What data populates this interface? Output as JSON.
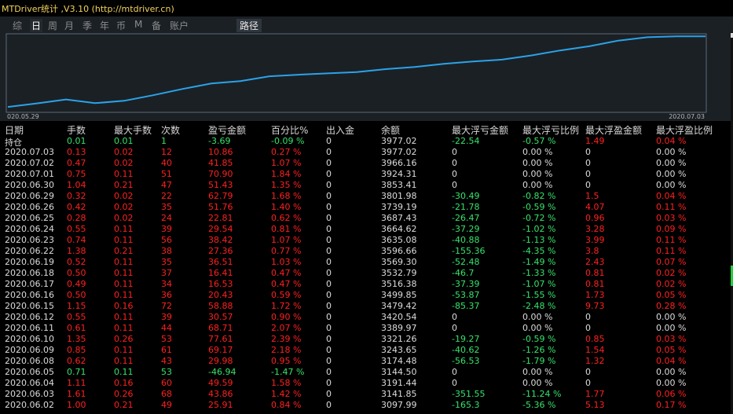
{
  "window": {
    "title": "MTDriver统计 ,V3.10 (http://mtdriver.cn)"
  },
  "tabs": [
    {
      "label": "综",
      "active": false,
      "icon": "tab-summary-icon"
    },
    {
      "label": "日",
      "active": true,
      "icon": "tab-day-icon"
    },
    {
      "label": "周",
      "active": false,
      "icon": "tab-week-icon"
    },
    {
      "label": "月",
      "active": false,
      "icon": "tab-month-icon"
    },
    {
      "label": "季",
      "active": false,
      "icon": "tab-quarter-icon"
    },
    {
      "label": "年",
      "active": false,
      "icon": "tab-year-icon"
    },
    {
      "label": "币",
      "active": false,
      "icon": "tab-currency-icon"
    },
    {
      "label": "M",
      "active": false,
      "icon": "tab-m-icon"
    },
    {
      "label": "备",
      "active": false,
      "icon": "tab-backup-icon"
    },
    {
      "label": "账户",
      "active": false,
      "icon": "tab-account-icon"
    }
  ],
  "path_tab": "路径",
  "chart_data": {
    "type": "line",
    "x_start": "020.05.29",
    "x_end": "2020.07.03",
    "series": [
      {
        "values": [
          3097.99,
          3141.85,
          3191.44,
          3144.5,
          3174.48,
          3243.65,
          3321.26,
          3389.97,
          3420.54,
          3479.42,
          3499.85,
          3516.38,
          3532.79,
          3569.3,
          3596.66,
          3635.08,
          3664.62,
          3687.43,
          3739.19,
          3801.98,
          3853.41,
          3924.31,
          3966.16,
          3977.02,
          3977.02
        ]
      }
    ],
    "line_color": "#2aa3e8"
  },
  "table": {
    "headers": [
      "日期",
      "手数",
      "最大手数",
      "次数",
      "盈亏金额",
      "百分比%",
      "出入金",
      "余额",
      "最大浮亏金额",
      "最大浮亏比例",
      "最大浮盈金额",
      "最大浮盈比例"
    ],
    "rows": [
      {
        "date": "持仓",
        "lots": "0.01",
        "max_lots": "0.01",
        "count": "1",
        "pnl": "-3.69",
        "pct": "-0.09 %",
        "io": "0",
        "bal": "3977.02",
        "mfl": "-22.54",
        "mflp": "-0.57 %",
        "mfp": "1.49",
        "mfpp": "0.04 %",
        "color": "green"
      },
      {
        "date": "2020.07.03",
        "lots": "0.13",
        "max_lots": "0.02",
        "count": "12",
        "pnl": "10.86",
        "pct": "0.27 %",
        "io": "0",
        "bal": "3977.02",
        "mfl": "0",
        "mflp": "0.00 %",
        "mfp": "0",
        "mfpp": "0.00 %",
        "color": "red"
      },
      {
        "date": "2020.07.02",
        "lots": "0.47",
        "max_lots": "0.02",
        "count": "40",
        "pnl": "41.85",
        "pct": "1.07 %",
        "io": "0",
        "bal": "3966.16",
        "mfl": "0",
        "mflp": "0.00 %",
        "mfp": "0",
        "mfpp": "0.00 %",
        "color": "red"
      },
      {
        "date": "2020.07.01",
        "lots": "0.75",
        "max_lots": "0.11",
        "count": "51",
        "pnl": "70.90",
        "pct": "1.84 %",
        "io": "0",
        "bal": "3924.31",
        "mfl": "0",
        "mflp": "0.00 %",
        "mfp": "0",
        "mfpp": "0.00 %",
        "color": "red"
      },
      {
        "date": "2020.06.30",
        "lots": "1.04",
        "max_lots": "0.21",
        "count": "47",
        "pnl": "51.43",
        "pct": "1.35 %",
        "io": "0",
        "bal": "3853.41",
        "mfl": "0",
        "mflp": "0.00 %",
        "mfp": "0",
        "mfpp": "0.00 %",
        "color": "red"
      },
      {
        "date": "2020.06.29",
        "lots": "0.32",
        "max_lots": "0.02",
        "count": "22",
        "pnl": "62.79",
        "pct": "1.68 %",
        "io": "0",
        "bal": "3801.98",
        "mfl": "-30.49",
        "mflp": "-0.82 %",
        "mfp": "1.5",
        "mfpp": "0.04 %",
        "color": "red"
      },
      {
        "date": "2020.06.26",
        "lots": "0.42",
        "max_lots": "0.02",
        "count": "35",
        "pnl": "51.76",
        "pct": "1.40 %",
        "io": "0",
        "bal": "3739.19",
        "mfl": "-21.78",
        "mflp": "-0.59 %",
        "mfp": "4.07",
        "mfpp": "0.11 %",
        "color": "red"
      },
      {
        "date": "2020.06.25",
        "lots": "0.28",
        "max_lots": "0.02",
        "count": "24",
        "pnl": "22.81",
        "pct": "0.62 %",
        "io": "0",
        "bal": "3687.43",
        "mfl": "-26.47",
        "mflp": "-0.72 %",
        "mfp": "0.96",
        "mfpp": "0.03 %",
        "color": "red"
      },
      {
        "date": "2020.06.24",
        "lots": "0.55",
        "max_lots": "0.11",
        "count": "39",
        "pnl": "29.54",
        "pct": "0.81 %",
        "io": "0",
        "bal": "3664.62",
        "mfl": "-37.29",
        "mflp": "-1.02 %",
        "mfp": "3.28",
        "mfpp": "0.09 %",
        "color": "red"
      },
      {
        "date": "2020.06.23",
        "lots": "0.74",
        "max_lots": "0.11",
        "count": "56",
        "pnl": "38.42",
        "pct": "1.07 %",
        "io": "0",
        "bal": "3635.08",
        "mfl": "-40.88",
        "mflp": "-1.13 %",
        "mfp": "3.99",
        "mfpp": "0.11 %",
        "color": "red"
      },
      {
        "date": "2020.06.22",
        "lots": "1.38",
        "max_lots": "0.21",
        "count": "38",
        "pnl": "27.36",
        "pct": "0.77 %",
        "io": "0",
        "bal": "3596.66",
        "mfl": "-155.36",
        "mflp": "-4.35 %",
        "mfp": "3.8",
        "mfpp": "0.11 %",
        "color": "red"
      },
      {
        "date": "2020.06.19",
        "lots": "0.52",
        "max_lots": "0.11",
        "count": "35",
        "pnl": "36.51",
        "pct": "1.03 %",
        "io": "0",
        "bal": "3569.30",
        "mfl": "-52.48",
        "mflp": "-1.49 %",
        "mfp": "2.43",
        "mfpp": "0.07 %",
        "color": "red"
      },
      {
        "date": "2020.06.18",
        "lots": "0.50",
        "max_lots": "0.11",
        "count": "37",
        "pnl": "16.41",
        "pct": "0.47 %",
        "io": "0",
        "bal": "3532.79",
        "mfl": "-46.7",
        "mflp": "-1.33 %",
        "mfp": "0.81",
        "mfpp": "0.02 %",
        "color": "red"
      },
      {
        "date": "2020.06.17",
        "lots": "0.49",
        "max_lots": "0.11",
        "count": "34",
        "pnl": "16.53",
        "pct": "0.47 %",
        "io": "0",
        "bal": "3516.38",
        "mfl": "-37.39",
        "mflp": "-1.07 %",
        "mfp": "0.81",
        "mfpp": "0.02 %",
        "color": "red"
      },
      {
        "date": "2020.06.16",
        "lots": "0.50",
        "max_lots": "0.11",
        "count": "36",
        "pnl": "20.43",
        "pct": "0.59 %",
        "io": "0",
        "bal": "3499.85",
        "mfl": "-53.87",
        "mflp": "-1.55 %",
        "mfp": "1.73",
        "mfpp": "0.05 %",
        "color": "red"
      },
      {
        "date": "2020.06.15",
        "lots": "1.15",
        "max_lots": "0.16",
        "count": "72",
        "pnl": "58.88",
        "pct": "1.72 %",
        "io": "0",
        "bal": "3479.42",
        "mfl": "-85.37",
        "mflp": "-2.48 %",
        "mfp": "9.73",
        "mfpp": "0.28 %",
        "color": "red"
      },
      {
        "date": "2020.06.12",
        "lots": "0.55",
        "max_lots": "0.11",
        "count": "39",
        "pnl": "30.57",
        "pct": "0.90 %",
        "io": "0",
        "bal": "3420.54",
        "mfl": "0",
        "mflp": "0.00 %",
        "mfp": "0",
        "mfpp": "0.00 %",
        "color": "red"
      },
      {
        "date": "2020.06.11",
        "lots": "0.61",
        "max_lots": "0.11",
        "count": "44",
        "pnl": "68.71",
        "pct": "2.07 %",
        "io": "0",
        "bal": "3389.97",
        "mfl": "0",
        "mflp": "0.00 %",
        "mfp": "0",
        "mfpp": "0.00 %",
        "color": "red"
      },
      {
        "date": "2020.06.10",
        "lots": "1.35",
        "max_lots": "0.26",
        "count": "53",
        "pnl": "77.61",
        "pct": "2.39 %",
        "io": "0",
        "bal": "3321.26",
        "mfl": "-19.27",
        "mflp": "-0.59 %",
        "mfp": "0.85",
        "mfpp": "0.03 %",
        "color": "red"
      },
      {
        "date": "2020.06.09",
        "lots": "0.85",
        "max_lots": "0.11",
        "count": "61",
        "pnl": "69.17",
        "pct": "2.18 %",
        "io": "0",
        "bal": "3243.65",
        "mfl": "-40.62",
        "mflp": "-1.26 %",
        "mfp": "1.54",
        "mfpp": "0.05 %",
        "color": "red"
      },
      {
        "date": "2020.06.08",
        "lots": "0.62",
        "max_lots": "0.11",
        "count": "43",
        "pnl": "29.98",
        "pct": "0.95 %",
        "io": "0",
        "bal": "3174.48",
        "mfl": "-56.53",
        "mflp": "-1.79 %",
        "mfp": "1.32",
        "mfpp": "0.04 %",
        "color": "red"
      },
      {
        "date": "2020.06.05",
        "lots": "0.71",
        "max_lots": "0.11",
        "count": "53",
        "pnl": "-46.94",
        "pct": "-1.47 %",
        "io": "0",
        "bal": "3144.50",
        "mfl": "0",
        "mflp": "0.00 %",
        "mfp": "0",
        "mfpp": "0.00 %",
        "color": "green"
      },
      {
        "date": "2020.06.04",
        "lots": "1.11",
        "max_lots": "0.16",
        "count": "60",
        "pnl": "49.59",
        "pct": "1.58 %",
        "io": "0",
        "bal": "3191.44",
        "mfl": "0",
        "mflp": "0.00 %",
        "mfp": "0",
        "mfpp": "0.00 %",
        "color": "red"
      },
      {
        "date": "2020.06.03",
        "lots": "1.61",
        "max_lots": "0.26",
        "count": "68",
        "pnl": "43.86",
        "pct": "1.42 %",
        "io": "0",
        "bal": "3141.85",
        "mfl": "-351.55",
        "mflp": "-11.24 %",
        "mfp": "1.77",
        "mfpp": "0.06 %",
        "color": "red"
      },
      {
        "date": "2020.06.02",
        "lots": "1.00",
        "max_lots": "0.21",
        "count": "49",
        "pnl": "25.91",
        "pct": "0.84 %",
        "io": "0",
        "bal": "3097.99",
        "mfl": "-165.3",
        "mflp": "-5.36 %",
        "mfp": "5.13",
        "mfpp": "0.17 %",
        "color": "red"
      }
    ]
  }
}
